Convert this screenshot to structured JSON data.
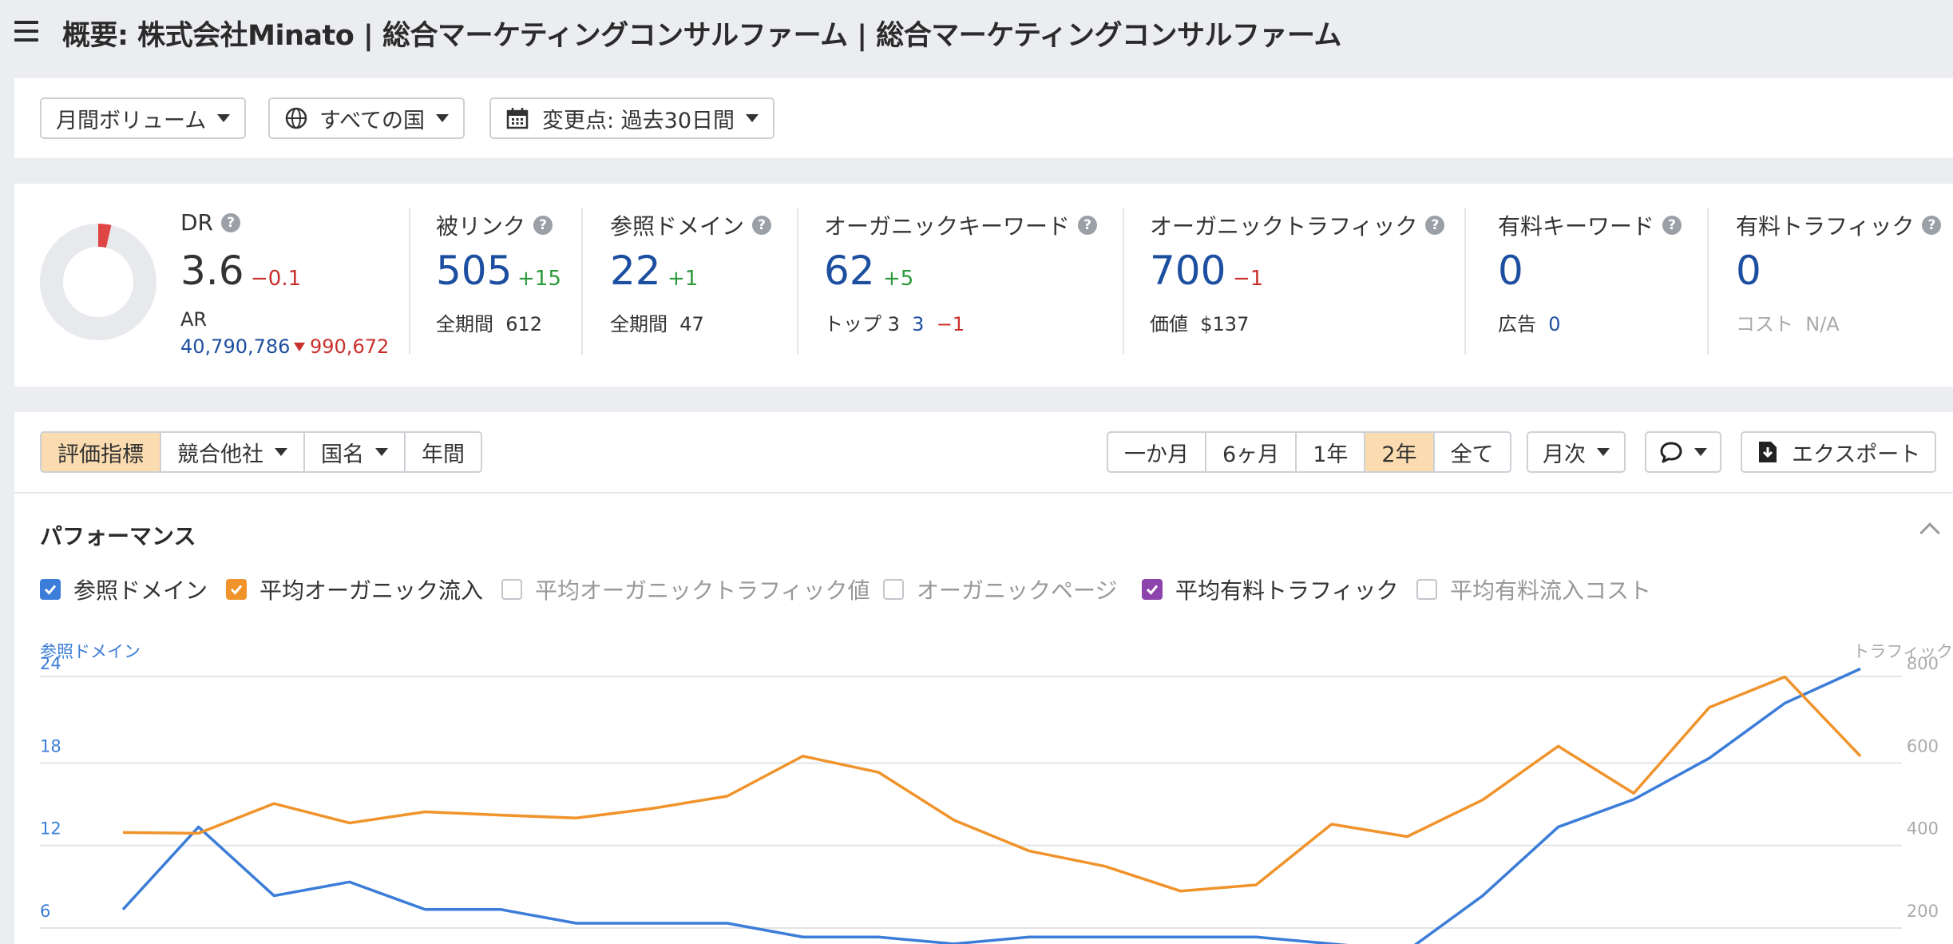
{
  "header": {
    "title": "概要: 株式会社Minato | 総合マーケティングコンサルファーム | 総合マーケティングコンサルファーム"
  },
  "filters": {
    "volume": "月間ボリューム",
    "country": "すべての国",
    "changes": "変更点: 過去30日間"
  },
  "stats": {
    "dr": {
      "label": "DR",
      "value": "3.6",
      "delta": "−0.1",
      "ar_label": "AR",
      "ar_value": "40,790,786",
      "ar_delta": "990,672"
    },
    "backlinks": {
      "label": "被リンク",
      "value": "505",
      "delta": "+15",
      "sub_label": "全期間",
      "sub_value": "612"
    },
    "ref_domains": {
      "label": "参照ドメイン",
      "value": "22",
      "delta": "+1",
      "sub_label": "全期間",
      "sub_value": "47"
    },
    "organic_keywords": {
      "label": "オーガニックキーワード",
      "value": "62",
      "delta": "+5",
      "sub_label": "トップ 3",
      "sub_value": "3",
      "sub_delta": "−1"
    },
    "organic_traffic": {
      "label": "オーガニックトラフィック",
      "value": "700",
      "delta": "−1",
      "sub_label": "価値",
      "sub_value": "$137"
    },
    "paid_keywords": {
      "label": "有料キーワード",
      "value": "0",
      "sub_label": "広告",
      "sub_value": "0"
    },
    "paid_traffic": {
      "label": "有料トラフィック",
      "value": "0",
      "sub_label": "コスト",
      "sub_value": "N/A"
    }
  },
  "toolbar": {
    "left_tabs": [
      "評価指標",
      "競合他社",
      "国名",
      "年間"
    ],
    "range_tabs": [
      "一か月",
      "6ヶ月",
      "1年",
      "2年",
      "全て"
    ],
    "interval": "月次",
    "export": "エクスポート"
  },
  "performance": {
    "title": "パフォーマンス",
    "legend": [
      {
        "label": "参照ドメイン",
        "checked": true,
        "color": "#3b7dd8"
      },
      {
        "label": "平均オーガニック流入",
        "checked": true,
        "color": "#f0932b"
      },
      {
        "label": "平均オーガニックトラフィック値",
        "checked": false,
        "color": "#999999"
      },
      {
        "label": "オーガニックページ",
        "checked": false,
        "color": "#999999"
      },
      {
        "label": "平均有料トラフィック",
        "checked": true,
        "color": "#8e44ad"
      },
      {
        "label": "平均有料流入コスト",
        "checked": false,
        "color": "#999999"
      }
    ]
  },
  "chart_data": {
    "type": "line",
    "left_axis_label": "参照ドメイン",
    "right_axis_label": "トラフィック",
    "left_ticks": [
      "24",
      "18",
      "12",
      "6"
    ],
    "right_ticks": [
      "800",
      "600",
      "400",
      "200"
    ],
    "grid": true,
    "series": [
      {
        "name": "参照ドメイン",
        "axis": "left",
        "color": "#3b7dd8",
        "values": [
          7,
          13,
          8,
          9,
          7,
          7,
          6,
          6,
          6,
          5,
          5,
          4.5,
          5,
          5,
          5,
          5,
          4.5,
          4,
          8,
          13,
          15,
          18,
          22,
          24.5
        ]
      },
      {
        "name": "平均オーガニック流入",
        "axis": "right",
        "color": "#f0932b",
        "values": [
          420,
          418,
          490,
          443,
          470,
          462,
          455,
          478,
          508,
          605,
          566,
          450,
          375,
          338,
          278,
          293,
          440,
          410,
          499,
          629,
          515,
          723,
          797,
          605
        ]
      }
    ]
  }
}
